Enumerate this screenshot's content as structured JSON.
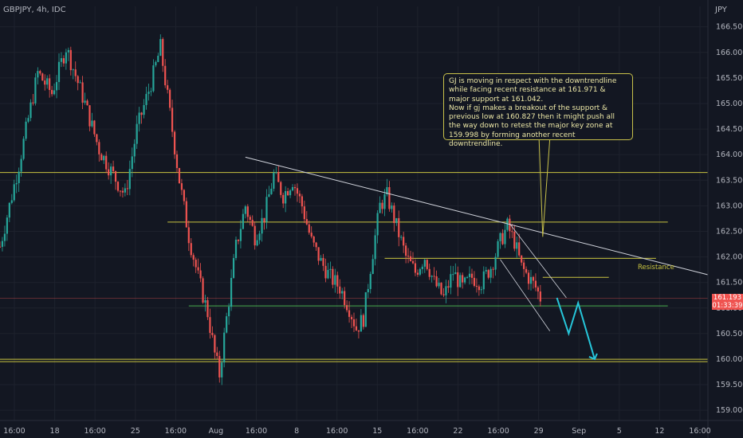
{
  "header": {
    "title": "GBPJPY, 4h, IDC",
    "currency": "JPY"
  },
  "colors": {
    "bg": "#131722",
    "up": "#26a69a",
    "down": "#ef5350",
    "grid": "#1e222d",
    "level": "#c9c440",
    "support": "#4caf50",
    "trend": "#d1d4dc",
    "forecast": "#26c6da"
  },
  "annotation": {
    "text": "GJ is moving in respect with the downtrendline while facing recent resistance at 161.971 & major support at 161.042.\nNow if gj makes a breakout of the support & previous low at 160.827 then it might push all the way down to retest the major key zone at 159.998 by forming another recent downtrendline."
  },
  "labels": {
    "resistance": "Resistance"
  },
  "price_tag": {
    "price": "161.193",
    "countdown": "01:33:39"
  },
  "chart_data": {
    "type": "candlestick",
    "title": "GBPJPY, 4h, IDC",
    "x_tick_labels": [
      "16:00",
      "18",
      "16:00",
      "25",
      "16:00",
      "Aug",
      "16:00",
      "8",
      "16:00",
      "15",
      "16:00",
      "22",
      "16:00",
      "29",
      "Sep",
      "5",
      "12",
      "16:00"
    ],
    "y_tick_labels": [
      "166.500",
      "166.000",
      "165.500",
      "165.000",
      "164.500",
      "164.000",
      "163.500",
      "163.000",
      "162.500",
      "162.000",
      "161.500",
      "161.000",
      "160.500",
      "160.000",
      "159.500",
      "159.000"
    ],
    "ylim": [
      158.8,
      166.9
    ],
    "xlim": [
      0,
      300
    ],
    "close_path": [
      [
        0,
        162.2
      ],
      [
        8,
        163.8
      ],
      [
        16,
        165.6
      ],
      [
        22,
        165.2
      ],
      [
        28,
        166.1
      ],
      [
        36,
        165.0
      ],
      [
        42,
        164.1
      ],
      [
        48,
        163.6
      ],
      [
        53,
        163.2
      ],
      [
        58,
        164.5
      ],
      [
        64,
        165.4
      ],
      [
        68,
        166.1
      ],
      [
        72,
        164.8
      ],
      [
        76,
        163.5
      ],
      [
        80,
        162.4
      ],
      [
        84,
        161.6
      ],
      [
        88,
        160.9
      ],
      [
        91,
        160.1
      ],
      [
        93,
        159.7
      ],
      [
        96,
        160.8
      ],
      [
        100,
        162.2
      ],
      [
        104,
        163.0
      ],
      [
        108,
        162.4
      ],
      [
        112,
        162.8
      ],
      [
        116,
        163.6
      ],
      [
        120,
        163.2
      ],
      [
        124,
        163.5
      ],
      [
        128,
        163.0
      ],
      [
        132,
        162.3
      ],
      [
        136,
        161.9
      ],
      [
        140,
        161.6
      ],
      [
        144,
        161.4
      ],
      [
        148,
        161.0
      ],
      [
        151,
        160.6
      ],
      [
        154,
        160.8
      ],
      [
        157,
        161.8
      ],
      [
        161,
        163.0
      ],
      [
        164,
        163.2
      ],
      [
        168,
        162.6
      ],
      [
        172,
        162.0
      ],
      [
        176,
        161.7
      ],
      [
        180,
        162.0
      ],
      [
        184,
        161.5
      ],
      [
        188,
        161.2
      ],
      [
        192,
        161.7
      ],
      [
        196,
        161.4
      ],
      [
        200,
        161.6
      ],
      [
        204,
        161.5
      ],
      [
        208,
        161.8
      ],
      [
        212,
        162.3
      ],
      [
        215,
        162.6
      ],
      [
        218,
        162.3
      ],
      [
        221,
        161.8
      ],
      [
        224,
        161.6
      ],
      [
        227,
        161.4
      ],
      [
        229,
        161.2
      ]
    ],
    "levels": [
      {
        "price": 163.65,
        "x1": 0,
        "x2": 300,
        "color": "level"
      },
      {
        "price": 162.68,
        "x1": 71,
        "x2": 283,
        "color": "level"
      },
      {
        "price": 161.971,
        "x1": 163,
        "x2": 278,
        "color": "level"
      },
      {
        "price": 161.6,
        "x1": 230,
        "x2": 258,
        "color": "level"
      },
      {
        "price": 161.042,
        "x1": 80,
        "x2": 283,
        "color": "support"
      },
      {
        "price": 159.998,
        "x1": 0,
        "x2": 300,
        "color": "level",
        "double": true
      },
      {
        "price": 161.193,
        "x1": 0,
        "x2": 300,
        "color": "down",
        "thin": true
      }
    ],
    "downtrend": {
      "x1": 104,
      "y1": 163.95,
      "x2": 300,
      "y2": 161.65
    },
    "channel": [
      {
        "x1": 212,
        "y1": 161.95,
        "x2": 233,
        "y2": 160.55
      },
      {
        "x1": 216,
        "y1": 162.65,
        "x2": 240,
        "y2": 161.2
      }
    ],
    "forecast_path": [
      [
        236,
        161.2
      ],
      [
        241,
        160.5
      ],
      [
        245,
        161.1
      ],
      [
        252,
        160.0
      ]
    ],
    "resistance_value": 161.971,
    "support_value": 161.042,
    "previous_low": 160.827,
    "key_zone": 159.998
  }
}
